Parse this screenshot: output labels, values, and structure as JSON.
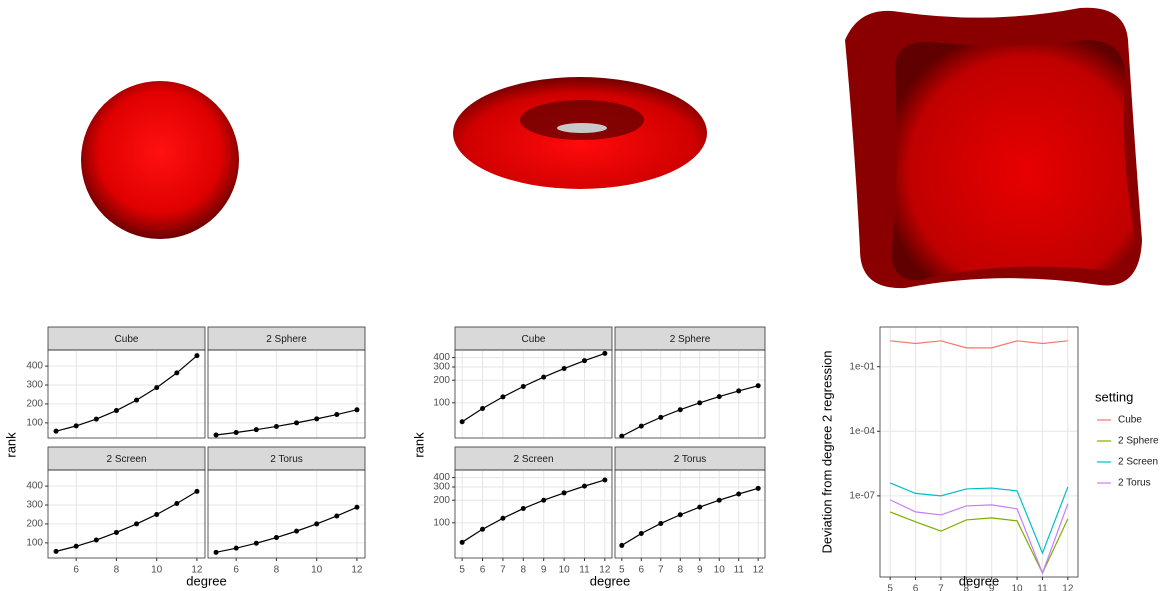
{
  "chart_data": [
    {
      "type": "line",
      "facets": true,
      "x": [
        5,
        6,
        7,
        8,
        9,
        10,
        11,
        12
      ],
      "series": [
        {
          "name": "Cube",
          "values": [
            56,
            84,
            120,
            165,
            220,
            286,
            364,
            455
          ]
        },
        {
          "name": "2 Sphere",
          "values": [
            36,
            49,
            64,
            81,
            100,
            121,
            144,
            169
          ]
        },
        {
          "name": "2 Screen",
          "values": [
            55,
            82,
            115,
            155,
            200,
            250,
            308,
            372
          ]
        },
        {
          "name": "2 Torus",
          "values": [
            50,
            72,
            98,
            128,
            162,
            200,
            242,
            288
          ]
        }
      ],
      "color": "#000000",
      "xlabel": "degree",
      "ylabel": "rank",
      "xlim": [
        4.6,
        12.4
      ],
      "xticks": [
        6,
        8,
        10,
        12
      ],
      "ylim": [
        20,
        485
      ],
      "yticks": [
        100,
        200,
        300,
        400
      ],
      "grid": true
    },
    {
      "type": "line",
      "facets": true,
      "log_y": true,
      "x": [
        5,
        6,
        7,
        8,
        9,
        10,
        11,
        12
      ],
      "series": [
        {
          "name": "Cube",
          "values": [
            56,
            84,
            120,
            165,
            220,
            286,
            364,
            455
          ]
        },
        {
          "name": "2 Sphere",
          "values": [
            36,
            49,
            64,
            81,
            100,
            121,
            144,
            169
          ]
        },
        {
          "name": "2 Screen",
          "values": [
            55,
            82,
            115,
            155,
            200,
            250,
            308,
            372
          ]
        },
        {
          "name": "2 Torus",
          "values": [
            50,
            72,
            98,
            128,
            162,
            200,
            242,
            288
          ]
        }
      ],
      "color": "#000000",
      "xlabel": "degree",
      "ylabel": "rank",
      "xlim": [
        4.65,
        12.35
      ],
      "xticks": [
        5,
        6,
        7,
        8,
        9,
        10,
        11,
        12
      ],
      "ylim": [
        34,
        505
      ],
      "yticks": [
        100,
        200,
        300,
        400
      ],
      "grid": true
    },
    {
      "type": "line",
      "log_y": true,
      "x": [
        5,
        6,
        7,
        8,
        9,
        10,
        11,
        12
      ],
      "series": [
        {
          "name": "Cube",
          "color": "#f8766d",
          "values": [
            1.6,
            1.2,
            1.6,
            0.75,
            0.75,
            1.6,
            1.2,
            1.6
          ]
        },
        {
          "name": "2 Sphere",
          "color": "#7cae00",
          "values": [
            1.8e-08,
            6.2e-09,
            2.3e-09,
            7.6e-09,
            9.5e-09,
            6.9e-09,
            2.6e-11,
            8.5e-09
          ]
        },
        {
          "name": "2 Screen",
          "color": "#00bfc4",
          "values": [
            4e-07,
            1.3e-07,
            1e-07,
            2.1e-07,
            2.3e-07,
            1.7e-07,
            2.2e-10,
            2.6e-07
          ]
        },
        {
          "name": "2 Torus",
          "color": "#c77cff",
          "values": [
            6.5e-08,
            1.8e-08,
            1.3e-08,
            3.4e-08,
            3.8e-08,
            2.5e-08,
            2.6e-11,
            4.3e-08
          ]
        }
      ],
      "xlabel": "degree",
      "ylabel": "Deviation from degree 2 regression",
      "legend_title": "setting",
      "legend": "right",
      "xlim": [
        4.6,
        12.4
      ],
      "xticks": [
        5,
        6,
        7,
        8,
        9,
        10,
        11,
        12
      ],
      "ylim": [
        1.7e-11,
        7
      ],
      "yticks": [
        {
          "value": 0.1,
          "label": "1e-01"
        },
        {
          "value": 0.0001,
          "label": "1e-04"
        },
        {
          "value": 1e-07,
          "label": "1e-07"
        }
      ],
      "grid": true
    }
  ]
}
